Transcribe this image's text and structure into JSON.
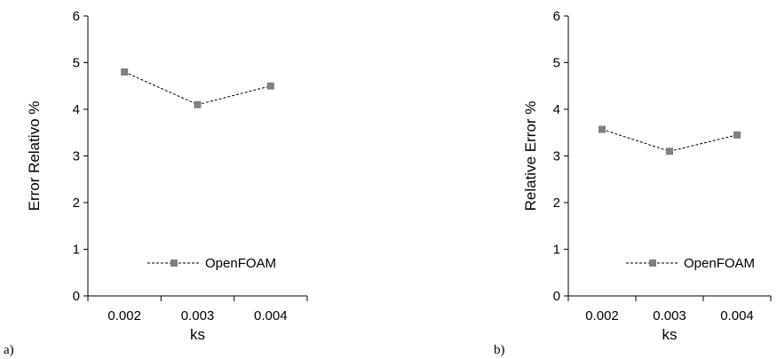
{
  "chart_data": [
    {
      "type": "line",
      "panel_label": "a)",
      "categories": [
        "0.002",
        "0.003",
        "0.004"
      ],
      "series": [
        {
          "name": "OpenFOAM",
          "values": [
            4.8,
            4.1,
            4.5
          ]
        }
      ],
      "xlabel": "ks",
      "ylabel": "Error Relativo %",
      "ylim": [
        0,
        6
      ],
      "yticks": [
        "0",
        "1",
        "2",
        "3",
        "4",
        "5",
        "6"
      ],
      "grid": false,
      "legend": "bottom-right",
      "line_style": "dashed",
      "marker": "square",
      "marker_color": "#808080"
    },
    {
      "type": "line",
      "panel_label": "b)",
      "categories": [
        "0.002",
        "0.003",
        "0.004"
      ],
      "series": [
        {
          "name": "OpenFOAM",
          "values": [
            3.57,
            3.1,
            3.45
          ]
        }
      ],
      "xlabel": "ks",
      "ylabel": "Relative Error %",
      "ylim": [
        0,
        6
      ],
      "yticks": [
        "0",
        "1",
        "2",
        "3",
        "4",
        "5",
        "6"
      ],
      "grid": false,
      "legend": "bottom-right",
      "line_style": "dashed",
      "marker": "square",
      "marker_color": "#808080"
    }
  ]
}
